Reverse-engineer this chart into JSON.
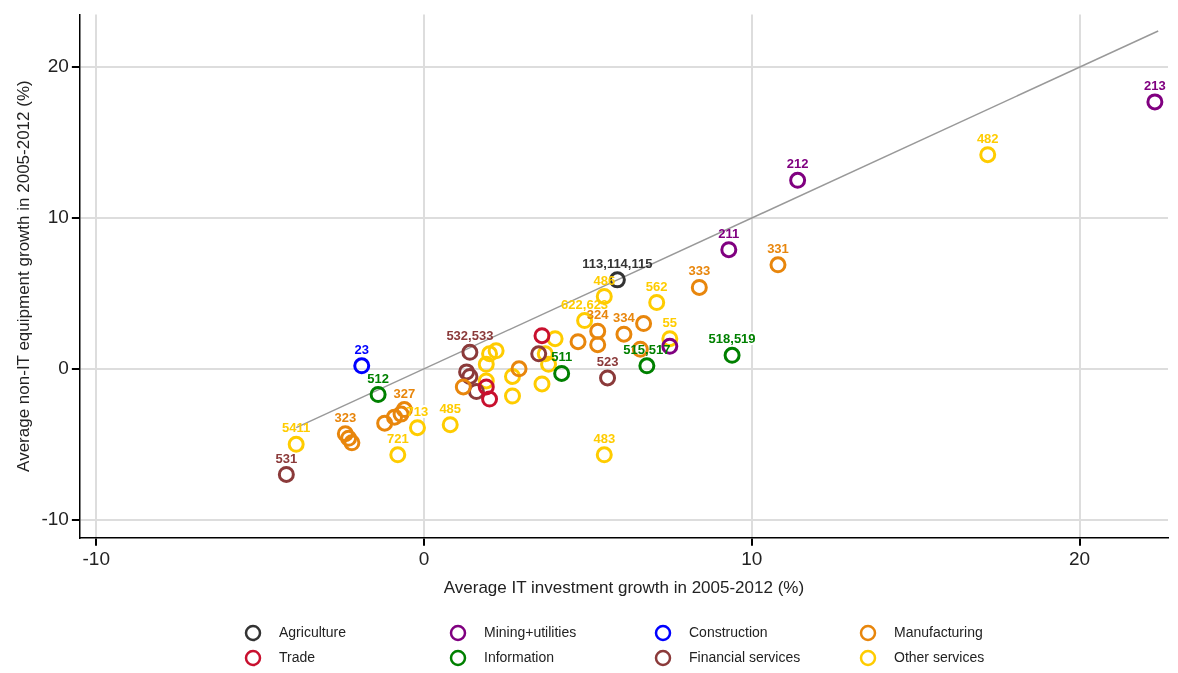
{
  "chart_data": {
    "type": "scatter",
    "xlabel": "Average IT investment growth in 2005-2012 (%)",
    "ylabel": "Average non-IT equipment growth in 2005-2012 (%)",
    "xlim": [
      -10.5,
      22.7
    ],
    "ylim": [
      -11.2,
      23.5
    ],
    "xticks": [
      -10,
      0,
      10,
      20
    ],
    "yticks": [
      -10,
      0,
      10,
      20
    ],
    "grid": true,
    "legend": "bottom",
    "marker": "circle",
    "series": [
      {
        "name": "Agriculture",
        "color": "#333333",
        "x": [
          5.9
        ],
        "values": [
          5.9
        ]
      },
      {
        "name": "Mining+utilities",
        "color": "#800080",
        "x": [
          22.3,
          11.4,
          9.3,
          7.5
        ],
        "values": [
          17.7,
          12.5,
          7.9,
          1.5
        ]
      },
      {
        "name": "Construction",
        "color": "#0000ff",
        "x": [
          -1.9
        ],
        "values": [
          0.2
        ]
      },
      {
        "name": "Manufacturing",
        "color": "#e8860c",
        "x": [
          10.8,
          8.4,
          -2.4,
          -2.3,
          -2.2,
          -1.2,
          -0.9,
          -0.7,
          -0.6,
          4.7,
          5.3,
          5.3,
          6.1,
          6.7,
          6.6,
          1.2,
          2.9
        ],
        "values": [
          6.9,
          5.4,
          -4.3,
          -4.6,
          -4.9,
          -3.6,
          -3.2,
          -3.0,
          -2.7,
          1.8,
          1.6,
          2.5,
          2.3,
          3.0,
          1.3,
          -1.2,
          0
        ]
      },
      {
        "name": "Trade",
        "color": "#c8102e",
        "x": [
          2.0,
          1.9,
          3.6
        ],
        "values": [
          -2.0,
          -1.2,
          2.2
        ]
      },
      {
        "name": "Information",
        "color": "#008000",
        "x": [
          -1.4,
          4.2,
          6.8,
          9.4
        ],
        "values": [
          -1.7,
          -0.3,
          0.2,
          0.9
        ]
      },
      {
        "name": "Financial services",
        "color": "#8b3a3a",
        "x": [
          -4.2,
          1.4,
          1.3,
          1.4,
          1.6,
          3.5,
          5.6
        ],
        "values": [
          -7.0,
          1.1,
          -0.2,
          -0.5,
          -1.5,
          1.0,
          -0.6
        ]
      },
      {
        "name": "Other services",
        "color": "#ffcc00",
        "x": [
          -3.9,
          -0.8,
          -0.2,
          0.8,
          5.5,
          17.2,
          5.5,
          7.1,
          7.5,
          4.9,
          2.0,
          2.2,
          1.9,
          1.9,
          2.7,
          2.7,
          3.6,
          4.0,
          3.8,
          3.7
        ],
        "values": [
          -5.0,
          -5.7,
          -3.9,
          -3.7,
          -5.7,
          14.2,
          4.8,
          4.4,
          2.0,
          3.2,
          1.0,
          1.2,
          0.3,
          -0.8,
          -1.8,
          -0.5,
          -1.0,
          2.0,
          0.3,
          1.0
        ]
      },
      {
        "type": "line",
        "marker": "none",
        "color": "#999999",
        "x": [
          -3.9,
          22.4
        ],
        "values": [
          -3.9,
          22.4
        ]
      }
    ],
    "annotations": [
      {
        "text": "113,114,115",
        "x": 5.9,
        "y": 5.9
      },
      {
        "text": "213",
        "x": 22.3,
        "y": 17.7
      },
      {
        "text": "212",
        "x": 11.4,
        "y": 12.5
      },
      {
        "text": "211",
        "x": 9.3,
        "y": 7.9
      },
      {
        "text": "23",
        "x": -1.9,
        "y": 0.2
      },
      {
        "text": "331",
        "x": 10.8,
        "y": 6.9
      },
      {
        "text": "333",
        "x": 8.4,
        "y": 5.4
      },
      {
        "text": "323",
        "x": -2.4,
        "y": -4.3
      },
      {
        "text": "327",
        "x": -0.6,
        "y": -2.7
      },
      {
        "text": "512",
        "x": -1.4,
        "y": -1.7
      },
      {
        "text": "5411",
        "x": -3.9,
        "y": -5.0
      },
      {
        "text": "531",
        "x": -4.2,
        "y": -7.0
      },
      {
        "text": "721",
        "x": -0.8,
        "y": -5.7
      },
      {
        "text": "713",
        "x": -0.2,
        "y": -3.9
      },
      {
        "text": "485",
        "x": 0.8,
        "y": -3.7
      },
      {
        "text": "483",
        "x": 5.5,
        "y": -5.7
      },
      {
        "text": "482",
        "x": 17.2,
        "y": 14.2
      },
      {
        "text": "486",
        "x": 5.5,
        "y": 4.8
      },
      {
        "text": "562",
        "x": 7.1,
        "y": 4.4
      },
      {
        "text": "55",
        "x": 7.5,
        "y": 2.0
      },
      {
        "text": "622,623",
        "x": 4.9,
        "y": 3.2
      },
      {
        "text": "515,517",
        "x": 6.8,
        "y": 0.2
      },
      {
        "text": "518,519",
        "x": 9.4,
        "y": 0.9
      },
      {
        "text": "511",
        "x": 4.2,
        "y": -0.3
      },
      {
        "text": "523",
        "x": 5.6,
        "y": -0.6
      },
      {
        "text": "532,533",
        "x": 1.4,
        "y": 1.1
      },
      {
        "text": "324",
        "x": 5.3,
        "y": 2.5
      },
      {
        "text": "334",
        "x": 6.1,
        "y": 2.3
      }
    ]
  }
}
